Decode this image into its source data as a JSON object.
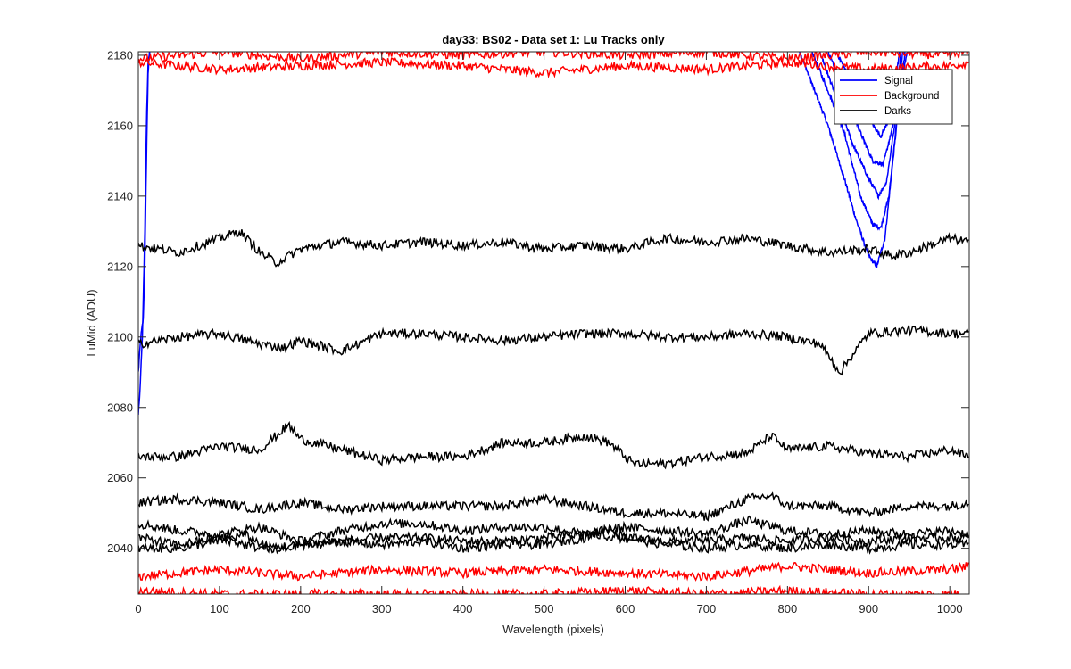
{
  "chart_data": {
    "type": "line",
    "title": "day33: BS02 - Data set 1: Lu Tracks only",
    "xlabel": "Wavelength (pixels)",
    "ylabel": "LuMid (ADU)",
    "xlim": [
      0,
      1024
    ],
    "ylim": [
      2027,
      2181
    ],
    "xticks": [
      0,
      100,
      200,
      300,
      400,
      500,
      600,
      700,
      800,
      900,
      1000
    ],
    "yticks": [
      2040,
      2060,
      2080,
      2100,
      2120,
      2140,
      2160,
      2180
    ],
    "grid": false,
    "legend": {
      "placement": "top-right",
      "entries": [
        {
          "name": "Signal",
          "color": "#0000ff"
        },
        {
          "name": "Background",
          "color": "#ff0000"
        },
        {
          "name": "Darks",
          "color": "#000000"
        }
      ]
    },
    "series": [
      {
        "group": "Signal",
        "color": "#0000ff",
        "x": [
          0,
          3,
          6,
          8,
          10,
          12,
          14
        ],
        "y": [
          2090,
          2100,
          2105,
          2120,
          2150,
          2175,
          2181
        ]
      },
      {
        "group": "Signal",
        "color": "#0000ff",
        "x": [
          0,
          2,
          5,
          8,
          10,
          12,
          14
        ],
        "y": [
          2078,
          2085,
          2100,
          2130,
          2160,
          2178,
          2181
        ]
      },
      {
        "group": "Signal",
        "color": "#0000ff",
        "x": [
          815,
          830,
          850,
          870,
          885,
          900,
          910,
          920,
          930,
          940,
          948
        ],
        "y": [
          2181,
          2172,
          2160,
          2145,
          2133,
          2123,
          2120,
          2128,
          2150,
          2172,
          2181
        ]
      },
      {
        "group": "Signal",
        "color": "#0000ff",
        "x": [
          830,
          850,
          870,
          890,
          905,
          915,
          925,
          935,
          945
        ],
        "y": [
          2181,
          2170,
          2158,
          2140,
          2132,
          2131,
          2140,
          2162,
          2181
        ]
      },
      {
        "group": "Signal",
        "color": "#0000ff",
        "x": [
          840,
          860,
          880,
          900,
          912,
          922,
          932,
          942
        ],
        "y": [
          2181,
          2168,
          2155,
          2145,
          2140,
          2144,
          2160,
          2181
        ]
      },
      {
        "group": "Signal",
        "color": "#0000ff",
        "x": [
          850,
          870,
          890,
          905,
          918,
          930,
          940
        ],
        "y": [
          2181,
          2170,
          2158,
          2150,
          2149,
          2160,
          2181
        ]
      },
      {
        "group": "Signal",
        "color": "#0000ff",
        "x": [
          860,
          880,
          900,
          915,
          928,
          938
        ],
        "y": [
          2181,
          2172,
          2162,
          2157,
          2163,
          2181
        ]
      },
      {
        "group": "Background",
        "color": "#ff0000",
        "x": [
          0,
          100,
          200,
          300,
          400,
          500,
          600,
          700,
          800,
          900,
          1000,
          1024
        ],
        "y": [
          2178,
          2176,
          2177,
          2178,
          2177,
          2175,
          2177,
          2176,
          2178,
          2176,
          2177,
          2178
        ]
      },
      {
        "group": "Background",
        "color": "#ff0000",
        "x": [
          0,
          100,
          200,
          300,
          400,
          500,
          600,
          700,
          800,
          900,
          1000,
          1024
        ],
        "y": [
          2179,
          2181,
          2179,
          2181,
          2180,
          2181,
          2180,
          2181,
          2179,
          2181,
          2180,
          2181
        ]
      },
      {
        "group": "Background",
        "color": "#ff0000",
        "x": [
          0,
          100,
          200,
          300,
          400,
          500,
          600,
          700,
          800,
          900,
          1000,
          1024
        ],
        "y": [
          2032,
          2034,
          2032,
          2034,
          2033,
          2034,
          2033,
          2032,
          2035,
          2033,
          2034,
          2035
        ]
      },
      {
        "group": "Background",
        "color": "#ff0000",
        "x": [
          0,
          100,
          200,
          300,
          400,
          500,
          600,
          700,
          800,
          900,
          1000,
          1024
        ],
        "y": [
          2028,
          2027,
          2027,
          2027,
          2027,
          2027,
          2028,
          2027,
          2028,
          2027,
          2027,
          2027
        ]
      },
      {
        "group": "Darks",
        "color": "#000000",
        "x": [
          0,
          50,
          100,
          125,
          150,
          170,
          200,
          250,
          300,
          350,
          400,
          450,
          500,
          550,
          600,
          650,
          700,
          750,
          800,
          850,
          900,
          930,
          950,
          1000,
          1024
        ],
        "y": [
          2126,
          2124,
          2128,
          2130,
          2124,
          2121,
          2125,
          2127,
          2126,
          2127,
          2126,
          2127,
          2125,
          2126,
          2125,
          2128,
          2127,
          2128,
          2126,
          2124,
          2125,
          2123,
          2124,
          2128,
          2127
        ]
      },
      {
        "group": "Darks",
        "color": "#000000",
        "x": [
          0,
          50,
          100,
          150,
          180,
          200,
          250,
          300,
          350,
          400,
          450,
          500,
          550,
          600,
          650,
          700,
          750,
          800,
          840,
          865,
          880,
          900,
          950,
          1000,
          1024
        ],
        "y": [
          2098,
          2100,
          2101,
          2098,
          2097,
          2099,
          2096,
          2101,
          2101,
          2100,
          2099,
          2100,
          2101,
          2101,
          2100,
          2100,
          2101,
          2100,
          2098,
          2090,
          2095,
          2101,
          2102,
          2101,
          2101
        ]
      },
      {
        "group": "Darks",
        "color": "#000000",
        "x": [
          0,
          50,
          100,
          150,
          185,
          200,
          250,
          300,
          350,
          400,
          450,
          500,
          550,
          580,
          610,
          650,
          700,
          750,
          780,
          800,
          850,
          900,
          950,
          1000,
          1024
        ],
        "y": [
          2066,
          2066,
          2069,
          2068,
          2075,
          2071,
          2068,
          2065,
          2066,
          2066,
          2070,
          2070,
          2072,
          2070,
          2064,
          2064,
          2066,
          2067,
          2072,
          2068,
          2069,
          2067,
          2066,
          2068,
          2066
        ]
      },
      {
        "group": "Darks",
        "color": "#000000",
        "x": [
          0,
          50,
          100,
          150,
          200,
          250,
          300,
          350,
          400,
          450,
          500,
          550,
          600,
          650,
          700,
          750,
          780,
          800,
          850,
          900,
          950,
          1000,
          1024
        ],
        "y": [
          2053,
          2054,
          2053,
          2051,
          2053,
          2051,
          2052,
          2052,
          2052,
          2052,
          2054,
          2052,
          2050,
          2050,
          2049,
          2054,
          2055,
          2052,
          2052,
          2050,
          2052,
          2052,
          2053
        ]
      },
      {
        "group": "Darks",
        "color": "#000000",
        "x": [
          0,
          50,
          100,
          150,
          200,
          250,
          300,
          350,
          400,
          450,
          500,
          550,
          600,
          650,
          700,
          750,
          800,
          850,
          900,
          950,
          1000,
          1024
        ],
        "y": [
          2047,
          2045,
          2044,
          2046,
          2042,
          2045,
          2047,
          2047,
          2045,
          2046,
          2046,
          2044,
          2046,
          2045,
          2044,
          2048,
          2045,
          2044,
          2045,
          2044,
          2045,
          2044
        ]
      },
      {
        "group": "Darks",
        "color": "#000000",
        "x": [
          0,
          50,
          100,
          150,
          200,
          250,
          300,
          350,
          400,
          450,
          500,
          550,
          600,
          650,
          700,
          750,
          800,
          850,
          900,
          950,
          1000,
          1024
        ],
        "y": [
          2043,
          2041,
          2043,
          2040,
          2041,
          2042,
          2043,
          2043,
          2042,
          2042,
          2043,
          2044,
          2043,
          2042,
          2042,
          2043,
          2042,
          2043,
          2042,
          2043,
          2043,
          2043
        ]
      },
      {
        "group": "Darks",
        "color": "#000000",
        "x": [
          0,
          50,
          100,
          130,
          170,
          200,
          250,
          300,
          350,
          400,
          450,
          500,
          550,
          580,
          600,
          650,
          700,
          750,
          800,
          850,
          900,
          950,
          1000,
          1024
        ],
        "y": [
          2040,
          2040,
          2042,
          2044,
          2039,
          2041,
          2042,
          2041,
          2042,
          2040,
          2041,
          2041,
          2043,
          2046,
          2043,
          2041,
          2040,
          2041,
          2040,
          2041,
          2040,
          2041,
          2041,
          2041
        ]
      }
    ]
  }
}
